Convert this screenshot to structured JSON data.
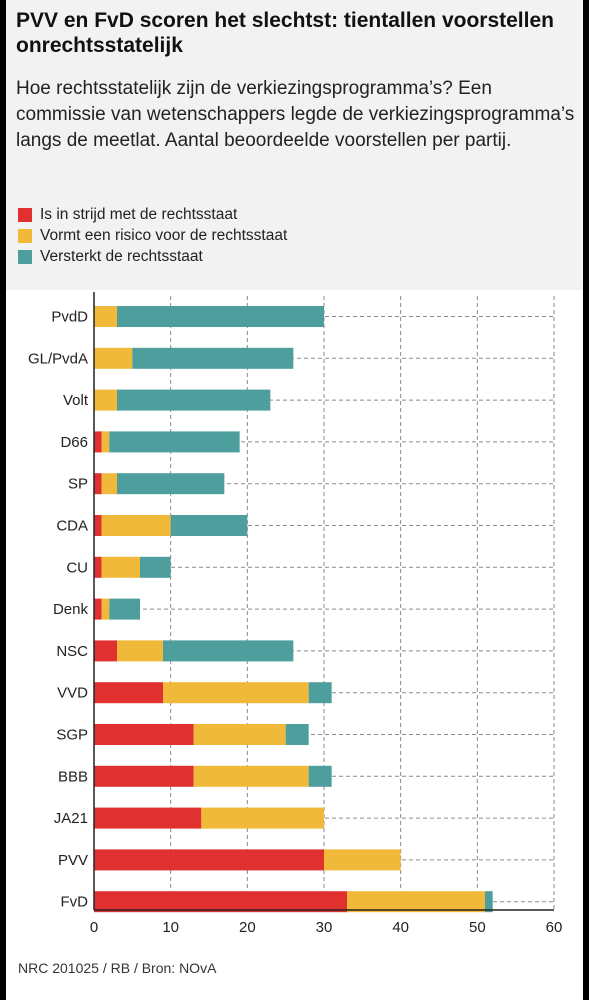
{
  "header": {
    "title": "PVV en FvD scoren het slechtst: tientallen voorstellen onrechtsstatelijk",
    "subtitle": "Hoe rechtsstatelijk zijn de verkiezingsprogramma’s? Een commissie van wetenschappers legde de verkiezingsprogramma’s langs de meetlat. Aantal beoordeelde voorstellen per partij."
  },
  "footer": {
    "source": "NRC 201025 / RB / Bron: NOvA"
  },
  "chart_data": {
    "type": "bar",
    "orientation": "horizontal",
    "stacked": true,
    "title": "PVV en FvD scoren het slechtst: tientallen voorstellen onrechtsstatelijk",
    "xlabel": "",
    "ylabel": "",
    "xlim": [
      0,
      60
    ],
    "xticks": [
      0,
      10,
      20,
      30,
      40,
      50,
      60
    ],
    "grid": true,
    "legend_position": "top-left",
    "categories": [
      "PvdD",
      "GL/PvdA",
      "Volt",
      "D66",
      "SP",
      "CDA",
      "CU",
      "Denk",
      "NSC",
      "VVD",
      "SGP",
      "BBB",
      "JA21",
      "PVV",
      "FvD"
    ],
    "series": [
      {
        "name": "Is in strijd met de rechtsstaat",
        "color": "#e03030",
        "values": [
          0,
          0,
          0,
          1,
          1,
          1,
          1,
          1,
          3,
          9,
          13,
          13,
          14,
          30,
          33
        ]
      },
      {
        "name": "Vormt een risico voor de rechtsstaat",
        "color": "#f0b93a",
        "values": [
          3,
          5,
          3,
          1,
          2,
          9,
          5,
          1,
          6,
          19,
          12,
          15,
          16,
          10,
          18
        ]
      },
      {
        "name": "Versterkt de rechtsstaat",
        "color": "#4e9e9e",
        "values": [
          27,
          21,
          20,
          17,
          14,
          10,
          4,
          4,
          17,
          3,
          3,
          3,
          0,
          0,
          1
        ]
      }
    ]
  }
}
